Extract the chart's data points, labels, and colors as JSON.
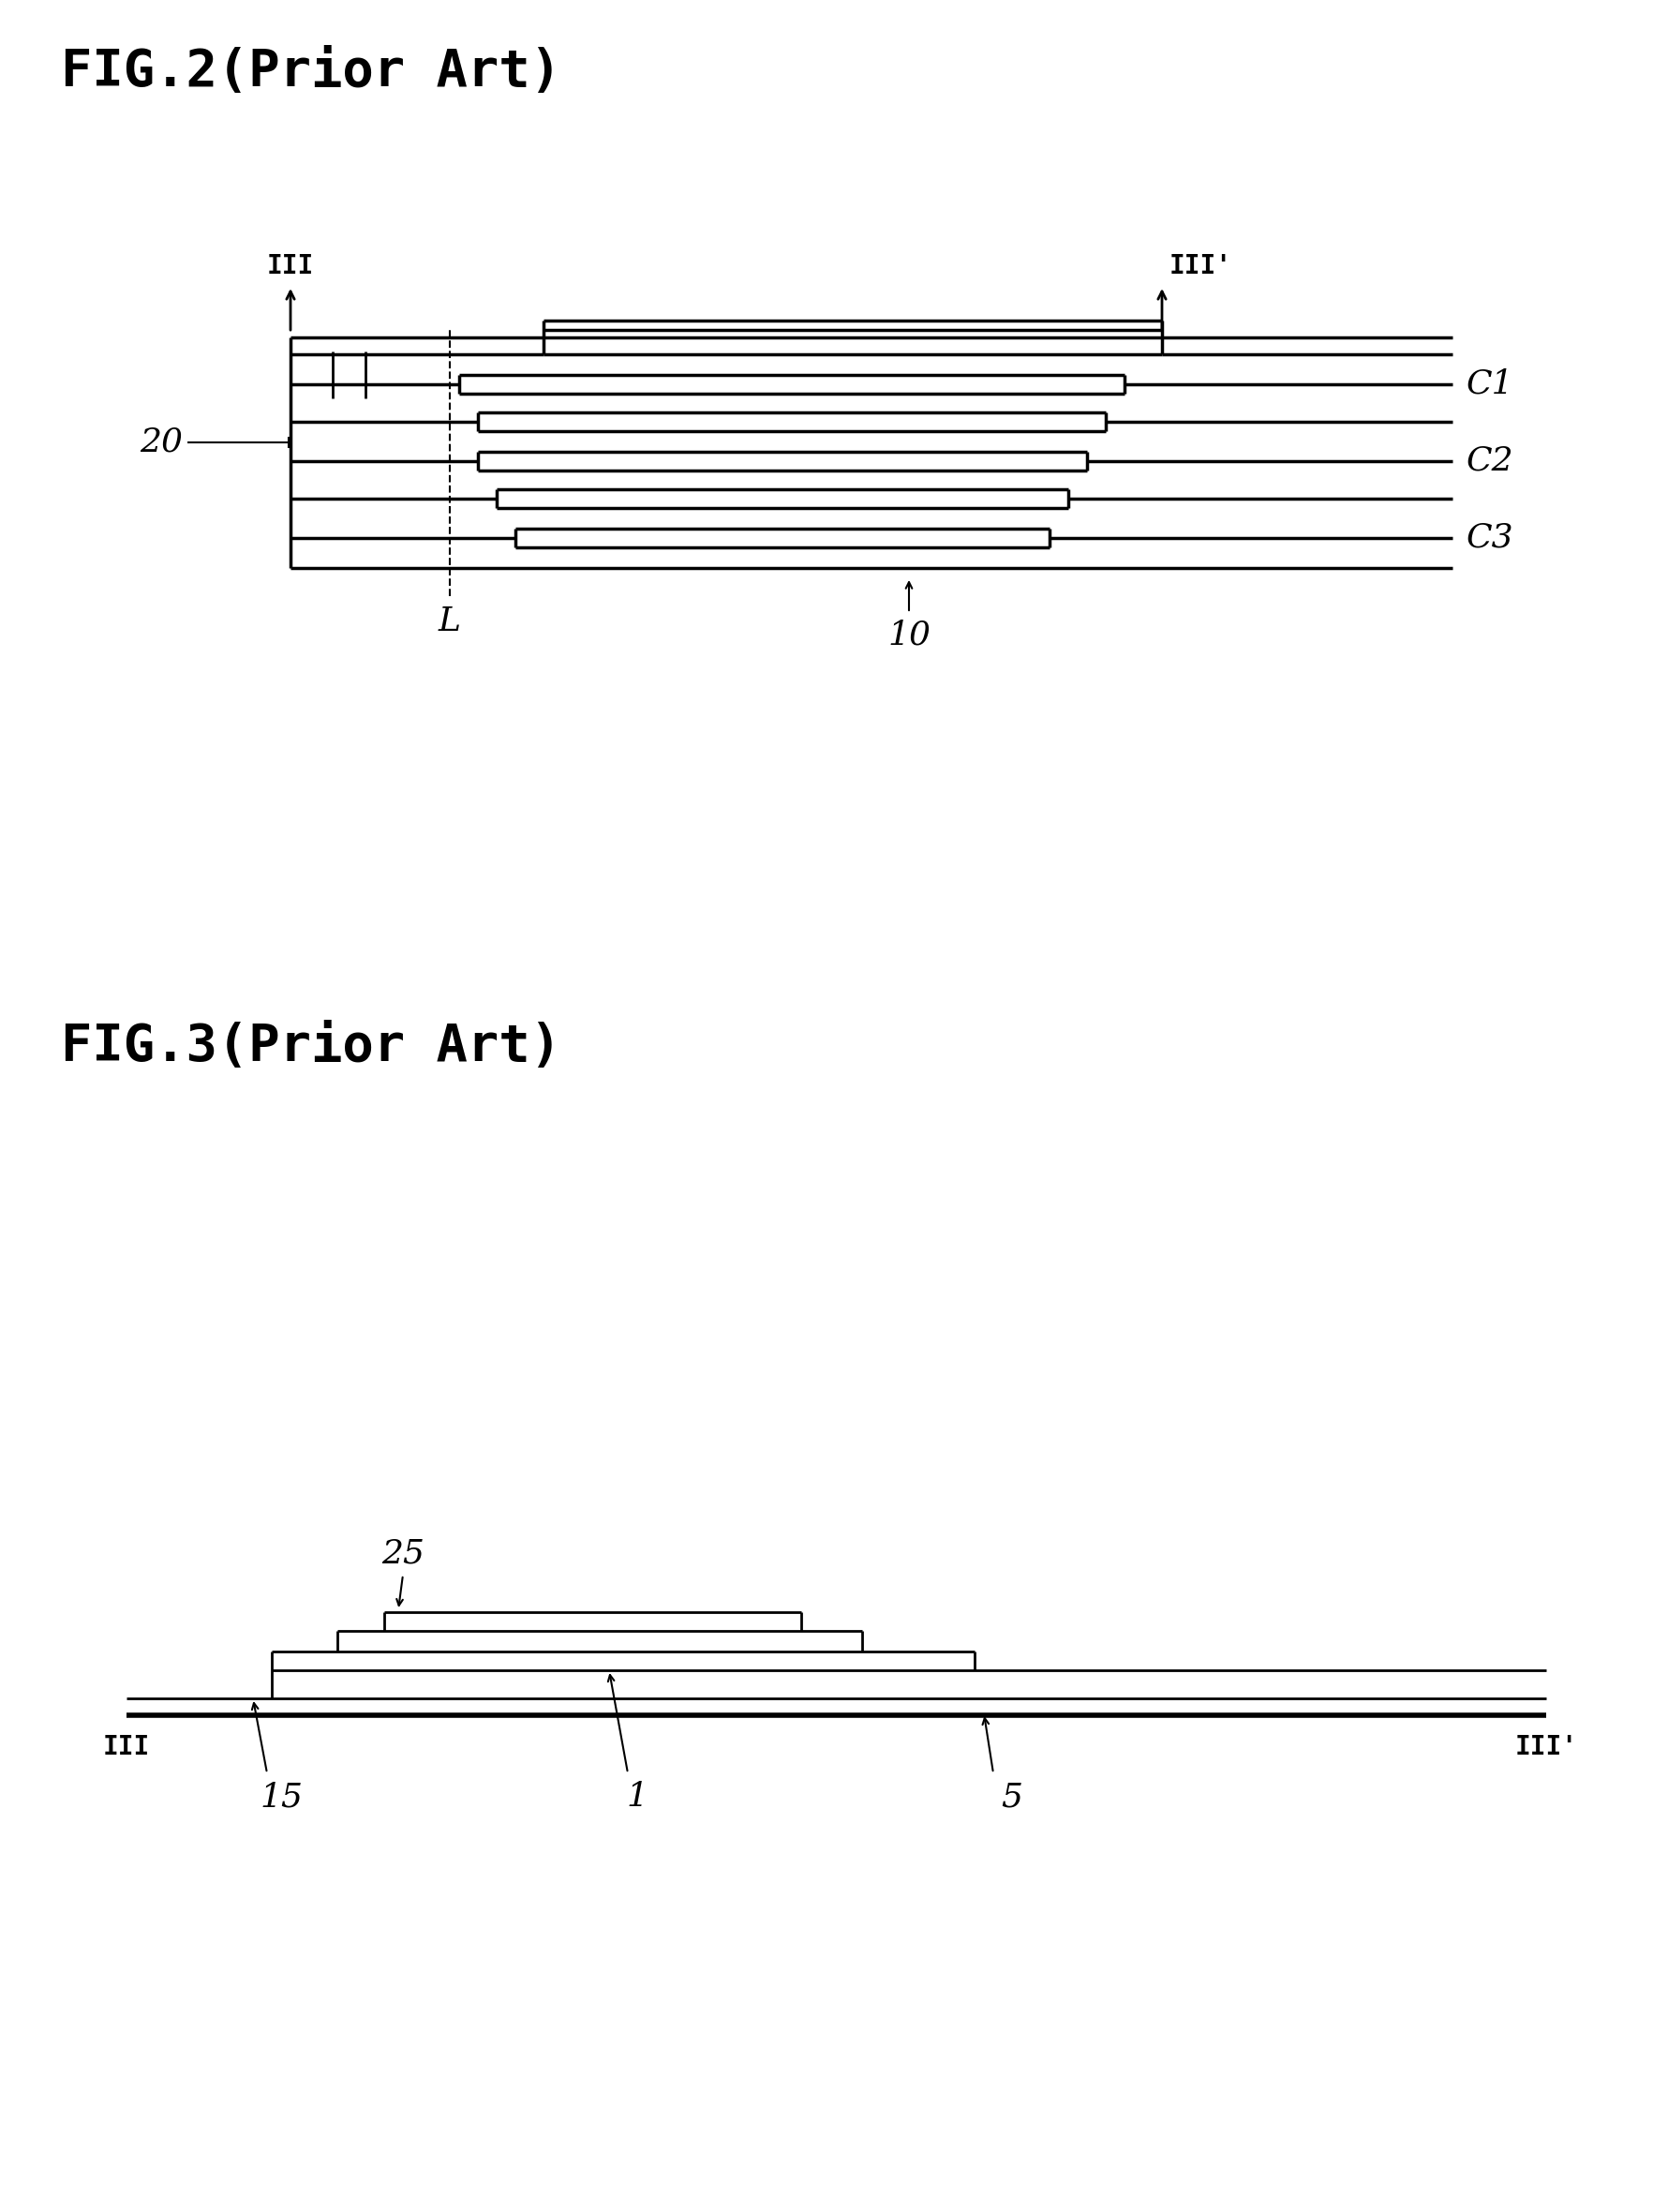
{
  "fig2_title": "FIG.2(Prior Art)",
  "fig3_title": "FIG.3(Prior Art)",
  "bg_color": "#ffffff",
  "line_color": "#000000",
  "fig2": {
    "label_III_left": "III",
    "label_III_right": "III'",
    "label_L": "L",
    "label_10": "10",
    "label_20": "20",
    "label_C1": "C1",
    "label_C2": "C2",
    "label_C3": "C3"
  },
  "fig3": {
    "label_III_left": "III",
    "label_III_right": "III'",
    "label_15": "15",
    "label_1": "1",
    "label_5": "5",
    "label_25": "25"
  }
}
